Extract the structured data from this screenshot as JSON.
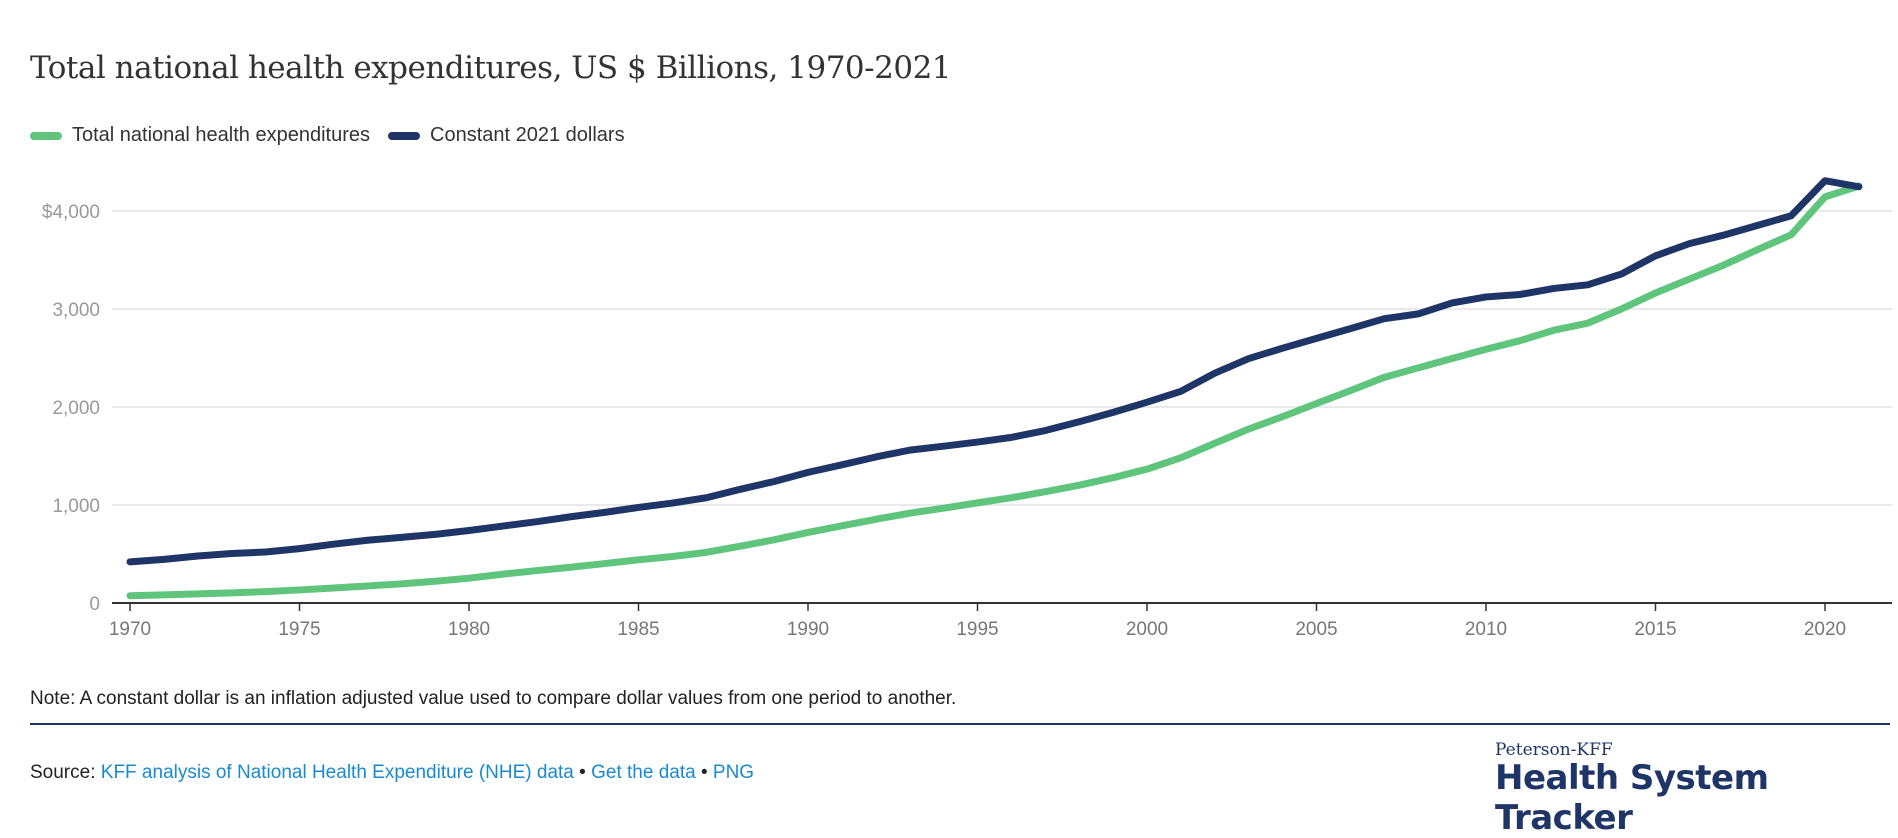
{
  "chart_data": {
    "type": "line",
    "title": "Total national health expenditures, US $ Billions, 1970-2021",
    "xlabel": "",
    "ylabel": "",
    "xlim": [
      1970,
      2021
    ],
    "ylim": [
      0,
      4400
    ],
    "grid": true,
    "legend_placement": "top-left",
    "x_ticks": [
      1970,
      1975,
      1980,
      1985,
      1990,
      1995,
      2000,
      2005,
      2010,
      2015,
      2020
    ],
    "x_tick_labels": [
      "1970",
      "1975",
      "1980",
      "1985",
      "1990",
      "1995",
      "2000",
      "2005",
      "2010",
      "2015",
      "2020"
    ],
    "y_ticks": [
      0,
      1000,
      2000,
      3000,
      4000
    ],
    "y_tick_labels": [
      "0",
      "1,000",
      "2,000",
      "3,000",
      "$4,000"
    ],
    "x": [
      1970,
      1971,
      1972,
      1973,
      1974,
      1975,
      1976,
      1977,
      1978,
      1979,
      1980,
      1981,
      1982,
      1983,
      1984,
      1985,
      1986,
      1987,
      1988,
      1989,
      1990,
      1991,
      1992,
      1993,
      1994,
      1995,
      1996,
      1997,
      1998,
      1999,
      2000,
      2001,
      2002,
      2003,
      2004,
      2005,
      2006,
      2007,
      2008,
      2009,
      2010,
      2011,
      2012,
      2013,
      2014,
      2015,
      2016,
      2017,
      2018,
      2019,
      2020,
      2021
    ],
    "series": [
      {
        "name": "Total national health expenditures",
        "color": "#5fc57d",
        "values": [
          74.6,
          82.7,
          92.7,
          102.8,
          116.5,
          133.3,
          152.7,
          173.9,
          195.3,
          221.5,
          253.2,
          294.3,
          330.8,
          365.2,
          402.4,
          440.8,
          474.7,
          516.7,
          579.7,
          644.7,
          719.7,
          788.1,
          854.1,
          916.5,
          967.2,
          1021.6,
          1074.4,
          1135.5,
          1202.0,
          1278.8,
          1366.0,
          1482.2,
          1630.4,
          1775.4,
          1902.0,
          2035.4,
          2167.5,
          2302.9,
          2399.1,
          2495.4,
          2589.6,
          2676.5,
          2783.3,
          2855.7,
          3001.4,
          3163.4,
          3305.6,
          3446.5,
          3604.5,
          3757.4,
          4144.1,
          4255.1
        ]
      },
      {
        "name": "Constant 2021 dollars",
        "color": "#1f3567",
        "values": [
          420,
          445,
          480,
          505,
          520,
          555,
          600,
          640,
          670,
          700,
          740,
          785,
          830,
          880,
          925,
          975,
          1020,
          1074,
          1160,
          1240,
          1333,
          1410,
          1490,
          1560,
          1600,
          1642,
          1690,
          1760,
          1850,
          1945,
          2049,
          2160,
          2345,
          2494,
          2600,
          2700,
          2800,
          2901,
          2950,
          3062,
          3123,
          3148,
          3210,
          3247,
          3358,
          3543,
          3667,
          3753,
          3852,
          3951,
          4309,
          4247
        ]
      }
    ]
  },
  "note": "Note: A constant dollar is an inflation adjusted value used to compare dollar values from one period to another.",
  "source": {
    "label": "Source:",
    "link1": "KFF analysis of National Health Expenditure (NHE) data",
    "sep": "•",
    "link2": "Get the data",
    "link3": "PNG"
  },
  "logo": {
    "top": "Peterson-KFF",
    "bottom": "Health System Tracker"
  }
}
